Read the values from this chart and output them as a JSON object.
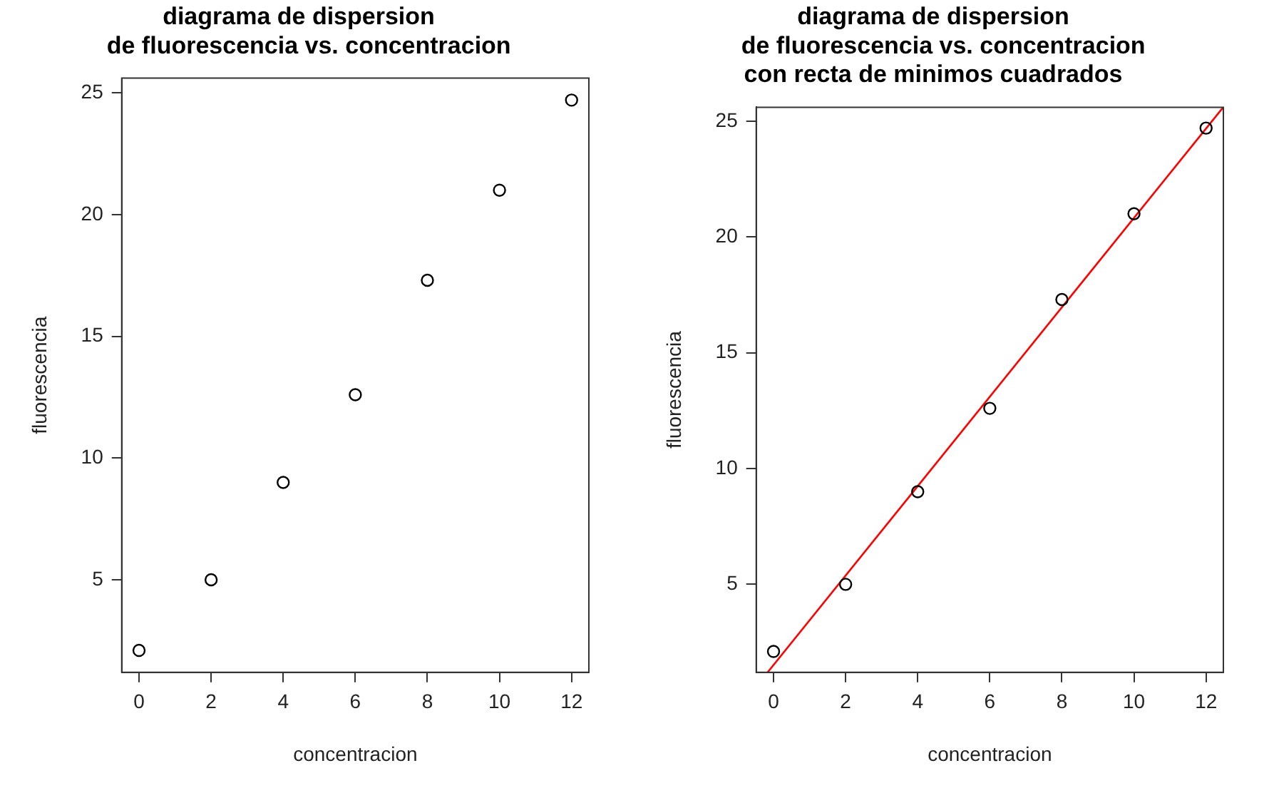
{
  "chart_data": [
    {
      "type": "scatter",
      "title": "diagrama de dispersion\n   de fluorescencia vs. concentracion",
      "xlabel": "concentracion",
      "ylabel": "fluorescencia",
      "x": [
        0,
        2,
        4,
        6,
        8,
        10,
        12
      ],
      "values": [
        2.1,
        5.0,
        9.0,
        12.6,
        17.3,
        21.0,
        24.7
      ],
      "color": "#000000",
      "marker": "circle",
      "xlim": [
        -0.48,
        12.48
      ],
      "ylim": [
        1.2,
        25.6
      ],
      "xticks": [
        0,
        2,
        4,
        6,
        8,
        10,
        12
      ],
      "yticks": [
        5,
        10,
        15,
        20,
        25
      ],
      "grid": false,
      "legend": false
    },
    {
      "type": "scatter",
      "title": "diagrama de dispersion\n   de fluorescencia vs. concentracion\ncon recta de minimos cuadrados",
      "xlabel": "concentracion",
      "ylabel": "fluorescencia",
      "series": [
        {
          "type": "scatter",
          "color": "#000000",
          "x": [
            0,
            2,
            4,
            6,
            8,
            10,
            12
          ],
          "values": [
            2.1,
            5.0,
            9.0,
            12.6,
            17.3,
            21.0,
            24.7
          ],
          "marker": "circle"
        },
        {
          "type": "line",
          "color": "#ff0000",
          "x": [
            -0.16,
            12.47
          ],
          "values": [
            1.21,
            25.59
          ],
          "marker": "none",
          "line_style": "solid"
        }
      ],
      "xlim": [
        -0.48,
        12.48
      ],
      "ylim": [
        1.2,
        25.6
      ],
      "xticks": [
        0,
        2,
        4,
        6,
        8,
        10,
        12
      ],
      "yticks": [
        5,
        10,
        15,
        20,
        25
      ],
      "grid": false,
      "legend": false
    }
  ]
}
